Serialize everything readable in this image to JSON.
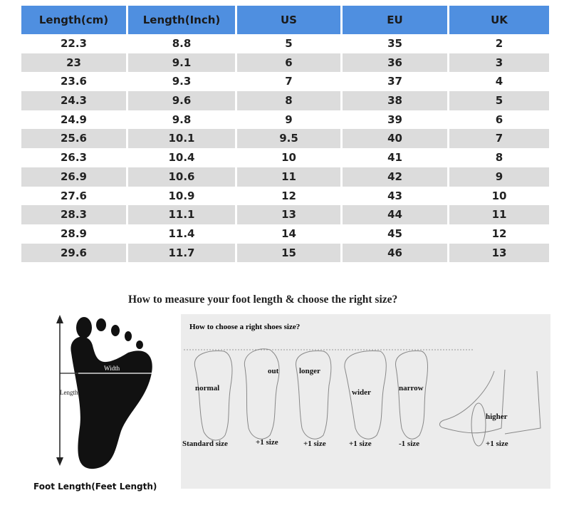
{
  "table": {
    "headers": [
      "Length(cm)",
      "Length(Inch)",
      "US",
      "EU",
      "UK"
    ],
    "rows": [
      [
        "22.3",
        "8.8",
        "5",
        "35",
        "2"
      ],
      [
        "23",
        "9.1",
        "6",
        "36",
        "3"
      ],
      [
        "23.6",
        "9.3",
        "7",
        "37",
        "4"
      ],
      [
        "24.3",
        "9.6",
        "8",
        "38",
        "5"
      ],
      [
        "24.9",
        "9.8",
        "9",
        "39",
        "6"
      ],
      [
        "25.6",
        "10.1",
        "9.5",
        "40",
        "7"
      ],
      [
        "26.3",
        "10.4",
        "10",
        "41",
        "8"
      ],
      [
        "26.9",
        "10.6",
        "11",
        "42",
        "9"
      ],
      [
        "27.6",
        "10.9",
        "12",
        "43",
        "10"
      ],
      [
        "28.3",
        "11.1",
        "13",
        "44",
        "11"
      ],
      [
        "28.9",
        "11.4",
        "14",
        "45",
        "12"
      ],
      [
        "29.6",
        "11.7",
        "15",
        "46",
        "13"
      ]
    ],
    "header_color": "#4f8fe0",
    "stripe_color": "#dcdcdc"
  },
  "guide": {
    "title": "How to measure your foot length & choose the right size?",
    "foot": {
      "width_label": "Width",
      "length_label": "Length",
      "caption": "Foot Length(Feet Length)"
    },
    "panel": {
      "title": "How to choose a right shoes size?",
      "feet": [
        {
          "label": "normal",
          "size": "Standard size"
        },
        {
          "label": "out",
          "size": "+1 size"
        },
        {
          "label": "longer",
          "size": "+1 size"
        },
        {
          "label": "wider",
          "size": "+1 size"
        },
        {
          "label": "narrow",
          "size": "-1 size"
        },
        {
          "label": "higher",
          "size": "+1 size"
        }
      ]
    }
  }
}
